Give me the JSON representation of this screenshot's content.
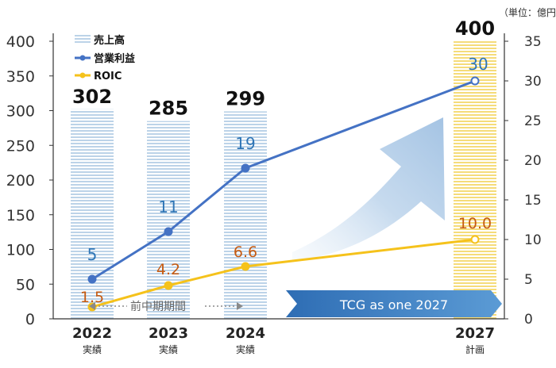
{
  "chart_data": {
    "type": "bar",
    "unit_note": "（単位：億円）",
    "categories": [
      {
        "year": "2022",
        "label": "実績"
      },
      {
        "year": "2023",
        "label": "実績"
      },
      {
        "year": "2024",
        "label": "実績"
      },
      {
        "year": "2027",
        "label": "計画"
      }
    ],
    "y_left": {
      "min": 0,
      "max": 400,
      "ticks": [
        0,
        50,
        100,
        150,
        200,
        250,
        300,
        350,
        400
      ]
    },
    "y_right": {
      "min": 0,
      "max": 35,
      "ticks": [
        0,
        5,
        10,
        15,
        20,
        25,
        30,
        35
      ]
    },
    "series": [
      {
        "name": "売上高",
        "kind": "bar",
        "axis": "left",
        "values": [
          302,
          285,
          299,
          400
        ],
        "labels": [
          "302",
          "285",
          "299",
          "400"
        ],
        "color": "#bcd3e8",
        "plan_color": "#f5dc7a"
      },
      {
        "name": "営業利益",
        "kind": "line",
        "axis": "right",
        "values": [
          5,
          11,
          19,
          30
        ],
        "labels": [
          "5",
          "11",
          "19",
          "30"
        ],
        "color": "#4472c4",
        "label_color": "#2e75b6"
      },
      {
        "name": "ROIC",
        "kind": "line",
        "axis": "right",
        "values": [
          1.5,
          4.2,
          6.6,
          10.0
        ],
        "labels": [
          "1.5",
          "4.2",
          "6.6",
          "10.0"
        ],
        "color": "#f5c21b",
        "label_color": "#c55a11"
      }
    ],
    "annotations": {
      "period_label": "前中期期間",
      "plan_banner": "TCG as one 2027"
    },
    "grid": false,
    "legend_position": "top-left"
  }
}
